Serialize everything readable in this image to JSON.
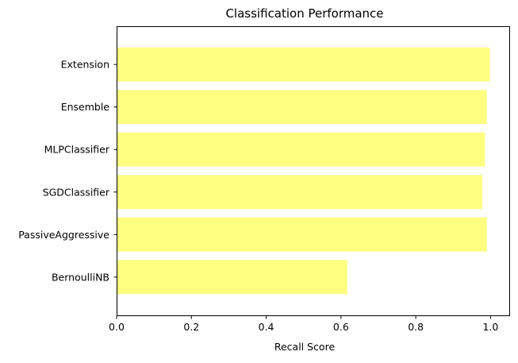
{
  "chart_data": {
    "type": "bar",
    "orientation": "horizontal",
    "title": "Classification Performance",
    "xlabel": "Recall Score",
    "ylabel": "",
    "xlim": [
      0,
      1.05
    ],
    "xticks": [
      0,
      0.2,
      0.4,
      0.6,
      0.8,
      1.0
    ],
    "xtick_labels": [
      "0.0",
      "0.2",
      "0.4",
      "0.6",
      "0.8",
      "1.0"
    ],
    "categories": [
      "BernoulliNB",
      "PassiveAggressive",
      "SGDClassifier",
      "MLPClassifier",
      "Ensemble",
      "Extension"
    ],
    "values": [
      0.617,
      0.99,
      0.978,
      0.985,
      0.99,
      0.998
    ],
    "bar_color": "#ffff80",
    "grid": false,
    "legend": "none"
  }
}
